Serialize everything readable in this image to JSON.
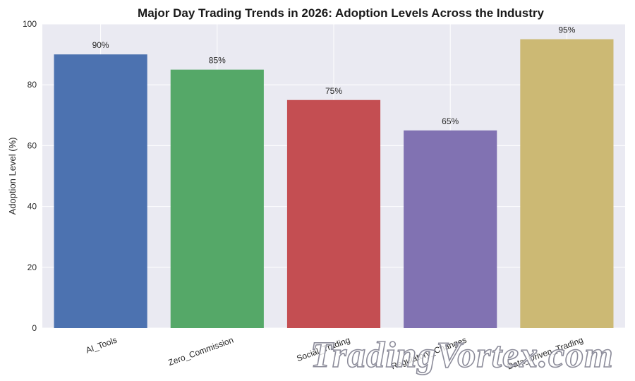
{
  "chart_data": {
    "type": "bar",
    "title": "Major Day Trading Trends in 2026: Adoption Levels Across the Industry",
    "xlabel": "",
    "ylabel": "Adoption Level (%)",
    "categories": [
      "AI_Tools",
      "Zero_Commission",
      "Social_Trading",
      "Regulatory_Changes",
      "Data_Driven_Trading"
    ],
    "values": [
      90,
      85,
      75,
      65,
      95
    ],
    "data_labels": [
      "90%",
      "85%",
      "75%",
      "65%",
      "95%"
    ],
    "colors": [
      "#4c72b0",
      "#55a868",
      "#c44e52",
      "#8172b2",
      "#ccb974"
    ],
    "ylim": [
      0,
      100
    ],
    "yticks": [
      0,
      20,
      40,
      60,
      80,
      100
    ],
    "grid": true,
    "background": "#eaeaf2"
  },
  "watermark": "TradingVortex.com"
}
